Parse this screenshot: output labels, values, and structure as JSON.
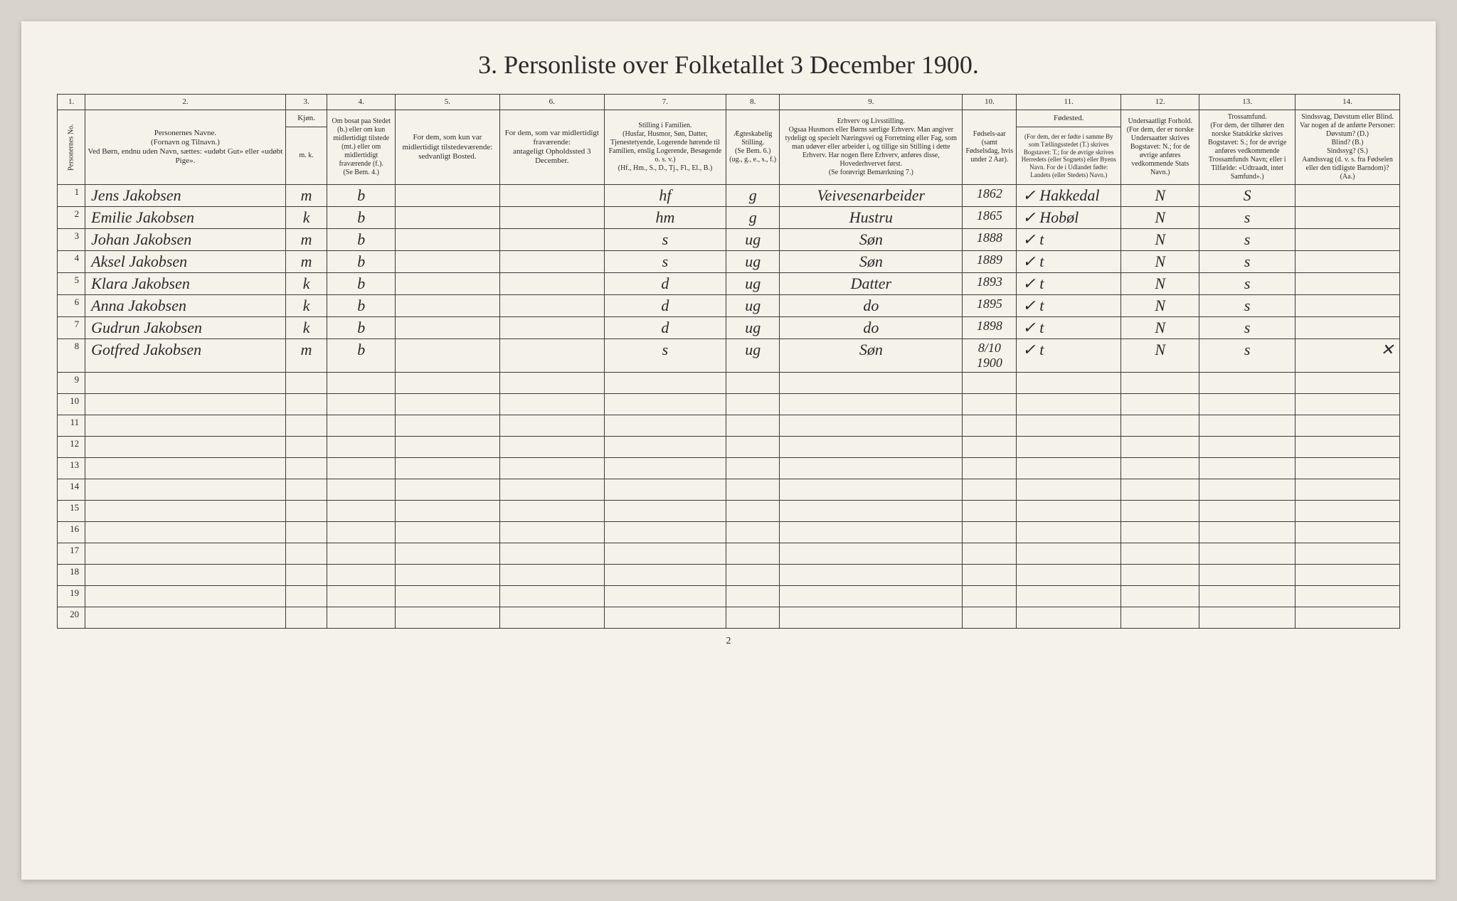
{
  "title": "3. Personliste over Folketallet 3 December 1900.",
  "page_number": "2",
  "columns": {
    "nums": [
      "1.",
      "2.",
      "3.",
      "4.",
      "5.",
      "6.",
      "7.",
      "8.",
      "9.",
      "10.",
      "11.",
      "12.",
      "13.",
      "14."
    ],
    "kjon_header": "Kjøn.",
    "kjon_sub": "m.  k.",
    "headers": {
      "c1": "Personernes No.",
      "c2": "Personernes Navne.\n(Fornavn og Tilnavn.)\nVed Børn, endnu uden Navn, sættes: «udøbt Gut» eller «udøbt Pige».",
      "c4": "Om bosat paa Stedet (b.) eller om kun midlertidigt tilstede (mt.) eller om midlertidigt fraværende (f.).\n(Se Bem. 4.)",
      "c5": "For dem, som kun var midlertidigt tilstedeværende:\nsedvanligt Bosted.",
      "c6": "For dem, som var midlertidigt fraværende:\nantageligt Opholdssted 3 December.",
      "c7": "Stilling i Familien.\n(Husfar, Husmor, Søn, Datter, Tjenestetyende, Logerende hørende til Familien, enslig Logerende, Besøgende o. s. v.)\n(Hf., Hm., S., D., Tj., Fl., El., B.)",
      "c8": "Ægteskabelig Stilling.\n(Se Bem. 6.)\n(ug., g., e., s., f.)",
      "c9": "Erhverv og Livsstilling.\nOgsaa Husmors eller Børns særlige Erhverv. Man angiver tydeligt og specielt Næringsvei og Forretning eller Fag, som man udøver eller arbeider i, og tillige sin Stilling i dette Erhverv. Har nogen flere Erhverv, anføres disse, Hovederhvervet først.\n(Se forøvrigt Bemærkning 7.)",
      "c10": "Fødsels-aar\n(samt Fødselsdag, hvis under 2 Aar).",
      "c11_top": "Fødested.",
      "c11": "(For dem, der er fødte i samme By som Tællingsstedet (T.) skrives Bogstavet: T.; for de øvrige skrives Herredets (eller Sognets) eller Byens Navn. For de i Udlandet fødte: Landets (eller Stedets) Navn.)",
      "c12": "Undersaatligt Forhold.\n(For dem, der er norske Undersaatter skrives Bogstavet: N.; for de øvrige anføres vedkommende Stats Navn.)",
      "c13": "Trossamfund.\n(For dem, der tilhører den norske Statskirke skrives Bogstavet: S.; for de øvrige anføres vedkommende Trossamfunds Navn; eller i Tilfælde: «Udtraadt, intet Samfund».)",
      "c14": "Sindssvag, Døvstum eller Blind.\nVar nogen af de anførte Personer:\nDøvstum? (D.)\nBlind? (B.)\nSindssyg? (S.)\nAandssvag (d. v. s. fra Fødselen eller den tidligste Barndom)? (Aa.)"
    }
  },
  "rows": [
    {
      "n": "1",
      "name": "Jens Jakobsen",
      "sex": "m",
      "res": "b",
      "fam": "hf",
      "mar": "g",
      "occ": "Veivesenarbeider",
      "year": "1862",
      "birthplace": "✓ Hakkedal",
      "nat": "N",
      "rel": "S",
      "dis": ""
    },
    {
      "n": "2",
      "name": "Emilie Jakobsen",
      "sex": "k",
      "res": "b",
      "fam": "hm",
      "mar": "g",
      "occ": "Hustru",
      "year": "1865",
      "birthplace": "✓ Hobøl",
      "nat": "N",
      "rel": "s",
      "dis": ""
    },
    {
      "n": "3",
      "name": "Johan Jakobsen",
      "sex": "m",
      "res": "b",
      "fam": "s",
      "mar": "ug",
      "occ": "Søn",
      "year": "1888",
      "birthplace": "✓ t",
      "nat": "N",
      "rel": "s",
      "dis": ""
    },
    {
      "n": "4",
      "name": "Aksel Jakobsen",
      "sex": "m",
      "res": "b",
      "fam": "s",
      "mar": "ug",
      "occ": "Søn",
      "year": "1889",
      "birthplace": "✓ t",
      "nat": "N",
      "rel": "s",
      "dis": ""
    },
    {
      "n": "5",
      "name": "Klara Jakobsen",
      "sex": "k",
      "res": "b",
      "fam": "d",
      "mar": "ug",
      "occ": "Datter",
      "year": "1893",
      "birthplace": "✓ t",
      "nat": "N",
      "rel": "s",
      "dis": ""
    },
    {
      "n": "6",
      "name": "Anna Jakobsen",
      "sex": "k",
      "res": "b",
      "fam": "d",
      "mar": "ug",
      "occ": "do",
      "year": "1895",
      "birthplace": "✓ t",
      "nat": "N",
      "rel": "s",
      "dis": ""
    },
    {
      "n": "7",
      "name": "Gudrun Jakobsen",
      "sex": "k",
      "res": "b",
      "fam": "d",
      "mar": "ug",
      "occ": "do",
      "year": "1898",
      "birthplace": "✓ t",
      "nat": "N",
      "rel": "s",
      "dis": ""
    },
    {
      "n": "8",
      "name": "Gotfred Jakobsen",
      "sex": "m",
      "res": "b",
      "fam": "s",
      "mar": "ug",
      "occ": "Søn",
      "year": "8/10 1900",
      "birthplace": "✓ t",
      "nat": "N",
      "rel": "s",
      "dis": "✕"
    }
  ],
  "empty_rows": [
    "9",
    "10",
    "11",
    "12",
    "13",
    "14",
    "15",
    "16",
    "17",
    "18",
    "19",
    "20"
  ]
}
